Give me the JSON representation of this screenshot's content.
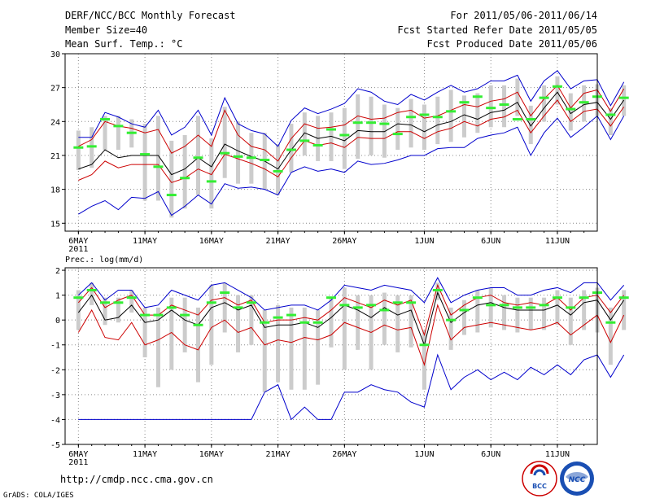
{
  "header": {
    "title": "DERF/NCC/BCC Monthly Forecast",
    "member_size": "Member Size=40",
    "variable": "Mean Surf. Temp.: °C",
    "forecast_period": "For 2011/05/06-2011/06/14",
    "refer_date": "Fcst Started Refer Date 2011/05/05",
    "produced_date": "Fcst Produced Date 2011/05/06"
  },
  "footer": {
    "url": "http://cmdp.ncc.cma.gov.cn",
    "credit": "GrADS: COLA/IGES",
    "logo_bcc": "BCC",
    "logo_ncc": "NCC"
  },
  "colors": {
    "range": "#0000cc",
    "spread": "#cc0000",
    "mean": "#000000",
    "box": "#cccccc",
    "median": "#33ee33",
    "grid": "#888888"
  },
  "chart_data": [
    {
      "type": "line",
      "title": "Mean Surf. Temp.: °C",
      "x_tick_labels": [
        "6MAY\n2011",
        "11MAY",
        "16MAY",
        "21MAY",
        "26MAY",
        "1JUN",
        "6JUN",
        "11JUN"
      ],
      "x_tick_days": [
        1,
        6,
        11,
        16,
        21,
        27,
        32,
        37
      ],
      "x_range": [
        0,
        40
      ],
      "y_ticks": [
        15,
        18,
        21,
        24,
        27,
        30
      ],
      "ylim": [
        14.3,
        30
      ],
      "grid": true,
      "series": [
        {
          "name": "max",
          "values": [
            15.8,
            16.5,
            17,
            16.2,
            17.3,
            17.2,
            17.8,
            15.7,
            16.5,
            17.5,
            16.7,
            18.5,
            18.1,
            18.2,
            18,
            17.5,
            19.5,
            20,
            19.6,
            19.8,
            19.5,
            20.5,
            20.2,
            20.3,
            20.6,
            21,
            21,
            21.6,
            21.7,
            21.7,
            22.5,
            22.8,
            23,
            23.5,
            21,
            23,
            24.3,
            22.6,
            23.5,
            24.5,
            22.4,
            24.5
          ]
        },
        {
          "name": "upper",
          "values": [
            21.8,
            22.4,
            24,
            23.6,
            23.4,
            23,
            23.3,
            21.2,
            21.8,
            22.8,
            21.8,
            25,
            22.8,
            21.8,
            21.5,
            20.5,
            22.5,
            23.8,
            23.4,
            23.5,
            23.7,
            24.5,
            24.2,
            24.3,
            24.8,
            25,
            24.3,
            24.5,
            25,
            25.5,
            25.3,
            25.8,
            26,
            26.6,
            24.5,
            26,
            27.2,
            25.2,
            26.5,
            26.8,
            24.9,
            26.9
          ]
        },
        {
          "name": "mean",
          "values": [
            19.8,
            20.2,
            21.5,
            20.8,
            21,
            21,
            21,
            19.3,
            19.8,
            20.8,
            20,
            22,
            21.4,
            20.9,
            20.5,
            19.8,
            21.5,
            23,
            22.5,
            22.7,
            22.3,
            23.2,
            23.1,
            23.1,
            23.8,
            23.7,
            23.1,
            23.7,
            24,
            24.6,
            24.2,
            24.8,
            25,
            25.7,
            23.6,
            25.2,
            26.6,
            24.7,
            25.5,
            25.7,
            24.2,
            25.9
          ]
        },
        {
          "name": "lower",
          "values": [
            18.8,
            19.3,
            20.5,
            19.9,
            20.2,
            20.2,
            20.2,
            18.6,
            19,
            19.8,
            19.3,
            21.1,
            20.7,
            20.3,
            19.8,
            19.1,
            20.8,
            22.3,
            21.9,
            22.1,
            21.7,
            22.6,
            22.5,
            22.5,
            23.1,
            23.1,
            22.5,
            23.1,
            23.4,
            24,
            23.6,
            24.2,
            24.4,
            25,
            23,
            24.5,
            25.9,
            24,
            24.9,
            25.1,
            23.6,
            25.3
          ]
        },
        {
          "name": "min",
          "values": [
            22.6,
            22.6,
            24.8,
            24.4,
            23.8,
            23.5,
            25,
            22.8,
            23.5,
            25,
            22.8,
            26.1,
            23.8,
            23.2,
            22.9,
            21.8,
            24.1,
            25.2,
            24.7,
            25.1,
            25.6,
            26.9,
            26.6,
            25.8,
            25.5,
            26.4,
            25.9,
            26.6,
            27.2,
            26.6,
            26.9,
            27.6,
            27.6,
            28.1,
            25.8,
            27.6,
            28.5,
            26.9,
            27.6,
            27.7,
            25.4,
            27.5
          ]
        },
        {
          "name": "median",
          "values": [
            21.7,
            21.8,
            24.2,
            23.6,
            23,
            21.1,
            20,
            17.5,
            19,
            20.8,
            18.7,
            21.2,
            20.9,
            20.8,
            20.6,
            19.6,
            21.5,
            22.3,
            21.9,
            23.3,
            22.8,
            23.9,
            23.9,
            23.8,
            22.9,
            24.4,
            24.6,
            24.4,
            24.9,
            25.7,
            26.2,
            25.2,
            25.5,
            24.2,
            24.2,
            26.1,
            27.1,
            25.1,
            25.7,
            26.2,
            24.6,
            26.1
          ]
        }
      ],
      "boxes": {
        "low": [
          19.7,
          19.9,
          21.5,
          21.5,
          21.7,
          17,
          17,
          15.5,
          16.3,
          17.5,
          16.3,
          19,
          18.5,
          18.5,
          18,
          17.5,
          19.5,
          21,
          20.5,
          20.5,
          19.8,
          20.7,
          21,
          20.8,
          21.5,
          21.7,
          21.5,
          22,
          22.2,
          22.6,
          23,
          23.5,
          23.5,
          24.5,
          22,
          24,
          25.5,
          23.2,
          24,
          24.5,
          22.8,
          24.5
        ],
        "high": [
          23.2,
          23.5,
          24.5,
          24.5,
          24.2,
          23.8,
          24.5,
          22.3,
          22.8,
          24.5,
          22.5,
          25.3,
          24,
          23,
          23,
          22,
          23.8,
          24.8,
          24.5,
          24.8,
          25.2,
          26.4,
          26.2,
          25.5,
          25.2,
          26,
          25.5,
          26.2,
          26.8,
          26.3,
          26.5,
          27.2,
          27.2,
          27.8,
          25.4,
          27.2,
          28,
          26.5,
          27.2,
          27.3,
          25.2,
          27.2
        ]
      }
    },
    {
      "type": "line",
      "title": "Prec.: log(mm/d)",
      "x_tick_labels": [
        "6MAY\n2011",
        "11MAY",
        "16MAY",
        "21MAY",
        "26MAY",
        "1JUN",
        "6JUN",
        "11JUN"
      ],
      "x_tick_days": [
        1,
        6,
        11,
        16,
        21,
        27,
        32,
        37
      ],
      "x_range": [
        0,
        40
      ],
      "y_ticks": [
        -5,
        -4,
        -3,
        -2,
        -1,
        0,
        1,
        2
      ],
      "ylim": [
        -5,
        2.1
      ],
      "grid": true,
      "series": [
        {
          "name": "max",
          "values": [
            1,
            1.5,
            0.8,
            1.2,
            1.2,
            0.5,
            0.6,
            1.2,
            1,
            0.8,
            1.4,
            1.5,
            1.2,
            0.9,
            0.4,
            0.5,
            0.6,
            0.6,
            0.4,
            0.8,
            1.4,
            1.3,
            1.2,
            1.4,
            1.3,
            1.2,
            0.7,
            1.7,
            0.7,
            1,
            1.2,
            1.3,
            1.3,
            1,
            1,
            1.2,
            1.3,
            1.1,
            1.5,
            1.5,
            0.8,
            1.4
          ]
        },
        {
          "name": "upper",
          "values": [
            0.7,
            1.3,
            0.5,
            0.8,
            1,
            0.2,
            0.2,
            0.6,
            0.4,
            0.2,
            0.8,
            0.9,
            0.6,
            0.8,
            -0.1,
            0,
            0,
            0.1,
            0,
            0.4,
            0.9,
            0.7,
            0.5,
            0.8,
            0.6,
            0.8,
            -0.6,
            1.4,
            0.2,
            0.6,
            0.9,
            1,
            0.7,
            0.6,
            0.7,
            0.6,
            0.9,
            0.4,
            0.9,
            1,
            0.3,
            1
          ]
        },
        {
          "name": "mean",
          "values": [
            0.3,
            1,
            0,
            0.1,
            0.6,
            -0.1,
            0,
            0.4,
            0,
            -0.2,
            0.5,
            0.7,
            0.4,
            0.6,
            -0.3,
            -0.2,
            -0.2,
            -0.1,
            -0.3,
            0.1,
            0.6,
            0.4,
            0.1,
            0.5,
            0.2,
            0.4,
            -1,
            1.1,
            -0.1,
            0.3,
            0.6,
            0.7,
            0.5,
            0.4,
            0.4,
            0.4,
            0.6,
            0.2,
            0.7,
            0.8,
            0,
            0.8
          ]
        },
        {
          "name": "lower",
          "values": [
            -0.5,
            0.4,
            -0.7,
            -0.8,
            -0.1,
            -1,
            -0.8,
            -0.5,
            -1,
            -1.2,
            -0.3,
            0,
            -0.5,
            -0.3,
            -1,
            -0.8,
            -0.9,
            -0.7,
            -0.8,
            -0.6,
            -0.1,
            -0.3,
            -0.5,
            -0.2,
            -0.4,
            -0.3,
            -1.8,
            0.6,
            -0.8,
            -0.3,
            -0.2,
            -0.1,
            -0.2,
            -0.3,
            -0.4,
            -0.3,
            -0.1,
            -0.6,
            -0.2,
            0.2,
            -0.9,
            0.2
          ]
        },
        {
          "name": "min",
          "values": [
            -4,
            -4,
            -4,
            -4,
            -4,
            -4,
            -4,
            -4,
            -4,
            -4,
            -4,
            -4,
            -4,
            -4,
            -2.9,
            -2.6,
            -4,
            -3.5,
            -4,
            -4,
            -2.9,
            -2.9,
            -2.6,
            -2.8,
            -2.9,
            -3.3,
            -3.5,
            -1.4,
            -2.8,
            -2.3,
            -2,
            -2.4,
            -2.1,
            -2.4,
            -1.9,
            -2.2,
            -1.8,
            -2.2,
            -1.6,
            -1.4,
            -2.3,
            -1.4
          ]
        },
        {
          "name": "median",
          "values": [
            0.9,
            1.2,
            0.7,
            0.7,
            0.9,
            0.2,
            0.2,
            0.5,
            0.2,
            -0.2,
            0.7,
            1.1,
            0.5,
            0.7,
            -0.1,
            0.1,
            0.2,
            -0.1,
            -0.1,
            0.9,
            0.6,
            0.5,
            0.6,
            0.4,
            0.7,
            0.7,
            -1,
            1.2,
            0,
            0.4,
            0.9,
            0.6,
            0.6,
            0.5,
            0.5,
            0.6,
            0.9,
            0.5,
            0.9,
            1.1,
            -0.1,
            0.9
          ]
        }
      ],
      "boxes": {
        "low": [
          -0.4,
          0.6,
          -0.2,
          -0.1,
          0.3,
          -1.5,
          -2.7,
          -2,
          -1.3,
          -2.5,
          -1.8,
          -0.5,
          -1.3,
          -1,
          -2.9,
          -2.5,
          -2.8,
          -2.8,
          -2.6,
          -1.1,
          -2,
          -1.2,
          -2,
          -1,
          -1.3,
          -1.1,
          -2.8,
          0.8,
          -1.2,
          -0.6,
          -0.5,
          -0.3,
          -0.4,
          -0.5,
          -0.4,
          -0.4,
          -0.2,
          -1,
          -0.4,
          -0.5,
          -1.8,
          -0.4
        ],
        "high": [
          1.2,
          1.5,
          0.9,
          0.9,
          1.2,
          0.5,
          0.5,
          0.9,
          0.9,
          0.5,
          1.4,
          1.5,
          1,
          1,
          0.4,
          0.6,
          0.5,
          0.5,
          0.4,
          0.9,
          1.3,
          1,
          1,
          1.1,
          1,
          1,
          -0.4,
          1.5,
          0.5,
          0.8,
          1.2,
          1.3,
          1,
          0.9,
          0.9,
          0.9,
          1.2,
          0.9,
          1.2,
          1.3,
          0.5,
          1.2
        ]
      }
    }
  ]
}
